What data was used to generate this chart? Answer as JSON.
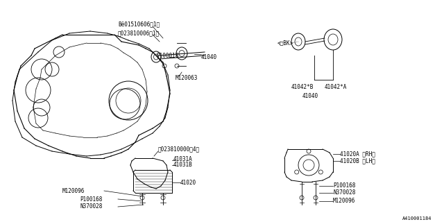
{
  "title": "",
  "background_color": "#ffffff",
  "line_color": "#000000",
  "part_color": "#d0d0d0",
  "fig_width": 6.4,
  "fig_height": 3.2,
  "dpi": 100,
  "watermark": "A410001184",
  "labels": {
    "B_bolt": "Bĕ01510606（1）",
    "N_nut1": "ⓝ023810006（1）",
    "P100018": "P100018",
    "M120063": "M120063",
    "41040_top": "41040",
    "N_nut2": "ⓝ023810000（4）",
    "41031A": "41031A",
    "41031B": "41031B",
    "41020": "41020",
    "M120096_l": "M120096",
    "P100168_l": "P100168",
    "N370028_l": "N370028",
    "41020A": "41020A ＜RH＞",
    "41020B": "41020B ＜LH＞",
    "P100168_r": "P100168",
    "N370028_r": "N370028",
    "M120096_r": "M120096",
    "BK": "＜□BK＞",
    "41042B": "41042*B",
    "41042A": "41042*A",
    "41040_bot": "41040"
  }
}
